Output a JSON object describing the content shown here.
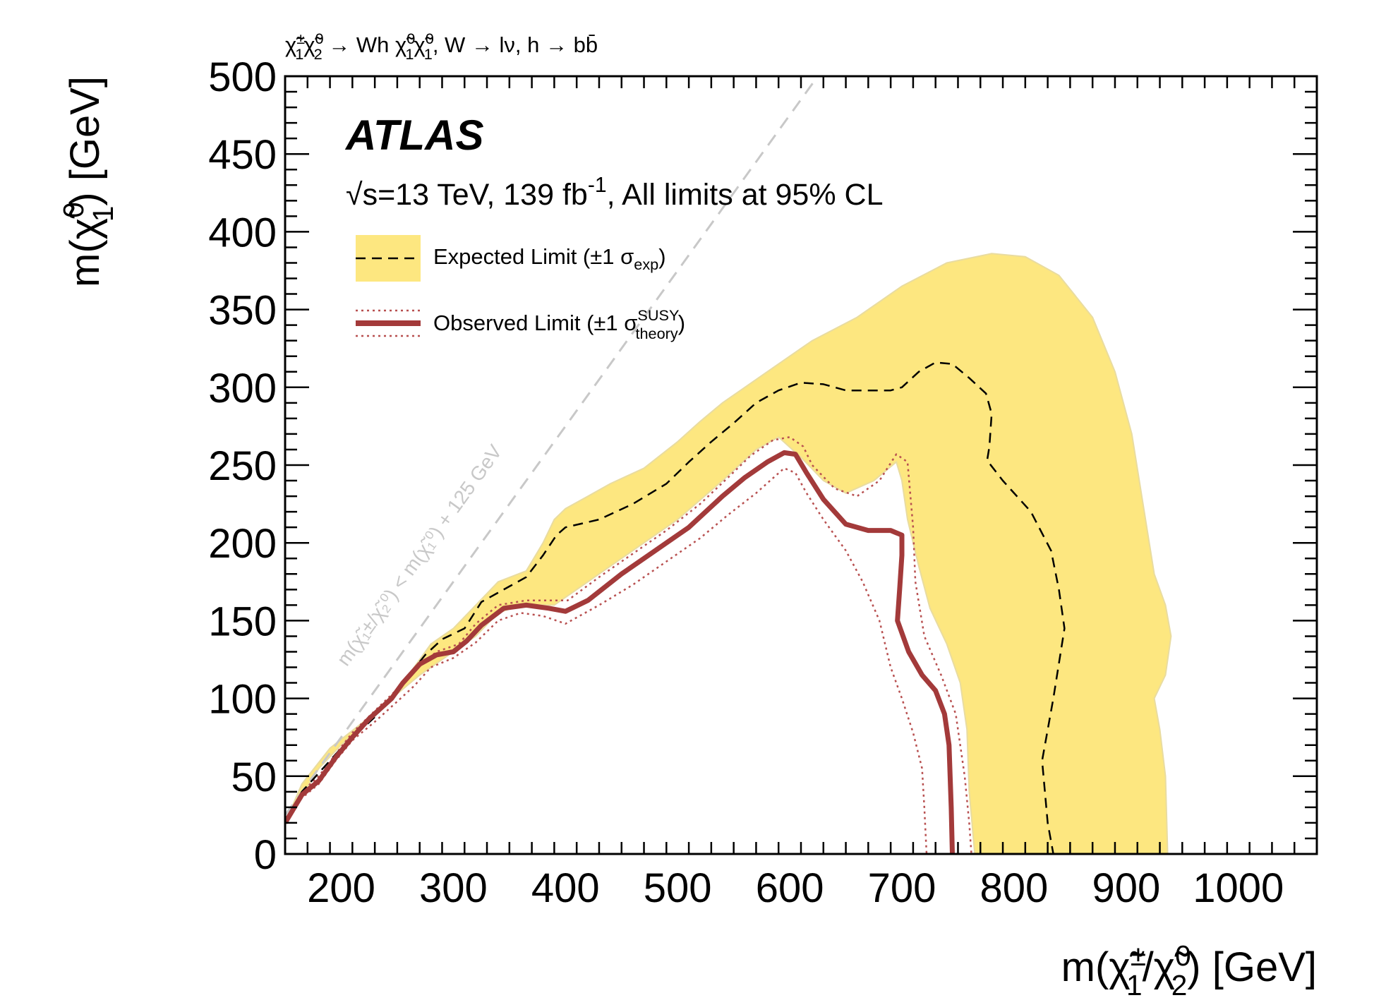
{
  "chart_data": {
    "type": "line",
    "process": {
      "prefix": "χ̃",
      "text": "χ̃₁± χ̃₂⁰ → Wh χ̃₁⁰χ̃₁⁰, W → lν, h → bb̄"
    },
    "atlas_label": "ATLAS",
    "energy_label": "√s=13 TeV, 139 fb",
    "energy_sup": "-1",
    "energy_suffix": ", All limits at 95% CL",
    "xlabel": "m(χ̃₁±/χ̃₂⁰) [GeV]",
    "ylabel": "m(χ̃₁⁰) [GeV]",
    "xlim": [
      150,
      1070
    ],
    "ylim": [
      0,
      500
    ],
    "xticks": [
      200,
      300,
      400,
      500,
      600,
      700,
      800,
      900,
      1000
    ],
    "yticks": [
      0,
      50,
      100,
      150,
      200,
      250,
      300,
      350,
      400,
      450,
      500
    ],
    "legend": {
      "expected": "Expected Limit (±1 σ",
      "expected_sub": "exp",
      "expected_close": ")",
      "observed": "Observed Limit (±1 σ",
      "observed_sup": "SUSY",
      "observed_sub": "theory",
      "observed_close": ")"
    },
    "diagonal_label": "m(χ̃₁±/χ̃₂⁰) < m(χ̃₁⁰) + 125 GeV",
    "colors": {
      "band": "#fde780",
      "band_edge": "#e9dca0",
      "observed": "#a33a3a",
      "theory": "#b85050",
      "diagonal": "#c8c8c8"
    },
    "series": [
      {
        "name": "Expected Limit band",
        "upper": [
          [
            150,
            20
          ],
          [
            180,
            55
          ],
          [
            200,
            70
          ],
          [
            230,
            90
          ],
          [
            255,
            110
          ],
          [
            280,
            135
          ],
          [
            300,
            145
          ],
          [
            320,
            160
          ],
          [
            340,
            175
          ],
          [
            365,
            182
          ],
          [
            380,
            200
          ],
          [
            390,
            215
          ],
          [
            400,
            222
          ],
          [
            420,
            230
          ],
          [
            440,
            238
          ],
          [
            470,
            248
          ],
          [
            500,
            265
          ],
          [
            520,
            278
          ],
          [
            540,
            290
          ],
          [
            560,
            300
          ],
          [
            590,
            315
          ],
          [
            620,
            330
          ],
          [
            660,
            345
          ],
          [
            700,
            365
          ],
          [
            740,
            380
          ],
          [
            780,
            386
          ],
          [
            810,
            384
          ],
          [
            840,
            372
          ],
          [
            870,
            345
          ],
          [
            890,
            310
          ],
          [
            905,
            270
          ],
          [
            915,
            225
          ],
          [
            925,
            180
          ],
          [
            935,
            160
          ],
          [
            940,
            140
          ],
          [
            935,
            115
          ],
          [
            925,
            100
          ],
          [
            930,
            80
          ],
          [
            935,
            50
          ],
          [
            937,
            0
          ]
        ],
        "lower": [
          [
            765,
            0
          ],
          [
            760,
            40
          ],
          [
            758,
            80
          ],
          [
            752,
            110
          ],
          [
            740,
            135
          ],
          [
            725,
            158
          ],
          [
            715,
            185
          ],
          [
            705,
            215
          ],
          [
            700,
            240
          ],
          [
            695,
            252
          ],
          [
            675,
            240
          ],
          [
            650,
            232
          ],
          [
            630,
            240
          ],
          [
            610,
            255
          ],
          [
            590,
            268
          ],
          [
            570,
            260
          ],
          [
            540,
            240
          ],
          [
            500,
            215
          ],
          [
            460,
            195
          ],
          [
            420,
            175
          ],
          [
            390,
            160
          ],
          [
            360,
            160
          ],
          [
            340,
            155
          ],
          [
            320,
            140
          ],
          [
            300,
            130
          ],
          [
            270,
            115
          ],
          [
            245,
            100
          ],
          [
            220,
            85
          ],
          [
            190,
            68
          ],
          [
            165,
            45
          ],
          [
            150,
            20
          ]
        ]
      },
      {
        "name": "Expected Limit",
        "points": [
          [
            150,
            20
          ],
          [
            165,
            40
          ],
          [
            200,
            68
          ],
          [
            230,
            88
          ],
          [
            255,
            110
          ],
          [
            275,
            128
          ],
          [
            290,
            138
          ],
          [
            310,
            145
          ],
          [
            325,
            162
          ],
          [
            350,
            172
          ],
          [
            365,
            178
          ],
          [
            380,
            192
          ],
          [
            392,
            205
          ],
          [
            400,
            210
          ],
          [
            430,
            215
          ],
          [
            460,
            225
          ],
          [
            490,
            238
          ],
          [
            510,
            252
          ],
          [
            530,
            265
          ],
          [
            550,
            277
          ],
          [
            570,
            290
          ],
          [
            590,
            298
          ],
          [
            610,
            303
          ],
          [
            630,
            302
          ],
          [
            650,
            298
          ],
          [
            670,
            298
          ],
          [
            690,
            298
          ],
          [
            700,
            300
          ],
          [
            715,
            310
          ],
          [
            730,
            316
          ],
          [
            745,
            315
          ],
          [
            760,
            306
          ],
          [
            775,
            296
          ],
          [
            780,
            283
          ],
          [
            778,
            262
          ],
          [
            776,
            253
          ],
          [
            790,
            240
          ],
          [
            815,
            220
          ],
          [
            833,
            195
          ],
          [
            840,
            170
          ],
          [
            845,
            145
          ],
          [
            835,
            100
          ],
          [
            825,
            60
          ],
          [
            830,
            20
          ],
          [
            835,
            0
          ]
        ]
      },
      {
        "name": "Observed Limit",
        "points": [
          [
            150,
            20
          ],
          [
            165,
            38
          ],
          [
            180,
            47
          ],
          [
            195,
            62
          ],
          [
            210,
            75
          ],
          [
            225,
            87
          ],
          [
            245,
            100
          ],
          [
            255,
            110
          ],
          [
            270,
            122
          ],
          [
            285,
            128
          ],
          [
            300,
            130
          ],
          [
            312,
            137
          ],
          [
            325,
            147
          ],
          [
            345,
            158
          ],
          [
            365,
            160
          ],
          [
            385,
            158
          ],
          [
            400,
            156
          ],
          [
            420,
            163
          ],
          [
            450,
            180
          ],
          [
            480,
            195
          ],
          [
            510,
            210
          ],
          [
            540,
            230
          ],
          [
            560,
            242
          ],
          [
            580,
            252
          ],
          [
            595,
            258
          ],
          [
            605,
            257
          ],
          [
            615,
            245
          ],
          [
            630,
            228
          ],
          [
            650,
            212
          ],
          [
            670,
            208
          ],
          [
            690,
            208
          ],
          [
            700,
            205
          ],
          [
            700,
            192
          ],
          [
            698,
            170
          ],
          [
            696,
            150
          ],
          [
            706,
            130
          ],
          [
            718,
            115
          ],
          [
            730,
            105
          ],
          [
            738,
            90
          ],
          [
            742,
            70
          ],
          [
            744,
            30
          ],
          [
            745,
            0
          ]
        ]
      },
      {
        "name": "Observed +1 sigma theory",
        "points": [
          [
            150,
            20
          ],
          [
            165,
            40
          ],
          [
            180,
            50
          ],
          [
            195,
            64
          ],
          [
            210,
            78
          ],
          [
            230,
            92
          ],
          [
            250,
            106
          ],
          [
            265,
            118
          ],
          [
            285,
            130
          ],
          [
            305,
            135
          ],
          [
            320,
            148
          ],
          [
            340,
            160
          ],
          [
            365,
            163
          ],
          [
            385,
            163
          ],
          [
            402,
            163
          ],
          [
            430,
            178
          ],
          [
            460,
            193
          ],
          [
            490,
            208
          ],
          [
            520,
            225
          ],
          [
            545,
            242
          ],
          [
            565,
            256
          ],
          [
            585,
            266
          ],
          [
            600,
            268
          ],
          [
            612,
            262
          ],
          [
            620,
            250
          ],
          [
            640,
            235
          ],
          [
            660,
            230
          ],
          [
            680,
            240
          ],
          [
            695,
            257
          ],
          [
            705,
            252
          ],
          [
            710,
            210
          ],
          [
            712,
            175
          ],
          [
            720,
            140
          ],
          [
            735,
            115
          ],
          [
            748,
            90
          ],
          [
            756,
            50
          ],
          [
            760,
            20
          ],
          [
            762,
            0
          ]
        ]
      },
      {
        "name": "Observed -1 sigma theory",
        "points": [
          [
            150,
            20
          ],
          [
            165,
            36
          ],
          [
            180,
            45
          ],
          [
            195,
            60
          ],
          [
            210,
            73
          ],
          [
            230,
            85
          ],
          [
            250,
            98
          ],
          [
            265,
            108
          ],
          [
            280,
            120
          ],
          [
            300,
            126
          ],
          [
            320,
            136
          ],
          [
            340,
            150
          ],
          [
            360,
            155
          ],
          [
            380,
            153
          ],
          [
            400,
            148
          ],
          [
            430,
            160
          ],
          [
            460,
            173
          ],
          [
            490,
            188
          ],
          [
            520,
            203
          ],
          [
            545,
            218
          ],
          [
            570,
            232
          ],
          [
            595,
            248
          ],
          [
            605,
            245
          ],
          [
            615,
            232
          ],
          [
            630,
            215
          ],
          [
            650,
            195
          ],
          [
            665,
            175
          ],
          [
            680,
            150
          ],
          [
            690,
            120
          ],
          [
            700,
            100
          ],
          [
            710,
            78
          ],
          [
            718,
            55
          ],
          [
            720,
            30
          ],
          [
            722,
            0
          ]
        ]
      }
    ]
  }
}
